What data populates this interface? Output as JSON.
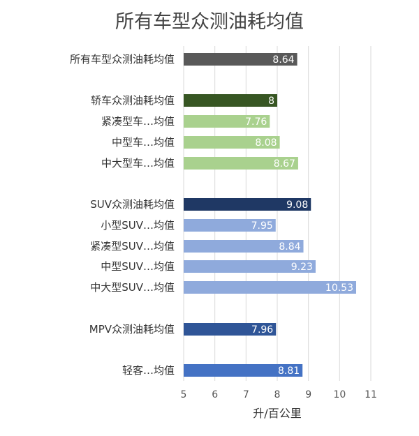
{
  "chart_data": {
    "type": "bar",
    "orientation": "horizontal",
    "title": "所有车型众测油耗均值",
    "xlabel": "升/百公里",
    "xlim": [
      5,
      11
    ],
    "xticks": [
      5,
      6,
      7,
      8,
      9,
      10,
      11
    ],
    "grid": true,
    "legend": "none",
    "bars": [
      {
        "label": "所有车型众测油耗均值",
        "value": 8.64,
        "value_label": "8.64",
        "color": "#595959"
      },
      {
        "label": "轿车众测油耗均值",
        "value": 8,
        "value_label": "8",
        "color": "#375623"
      },
      {
        "label": "紧凑型车…均值",
        "value": 7.76,
        "value_label": "7.76",
        "color": "#a9d18e"
      },
      {
        "label": "中型车…均值",
        "value": 8.08,
        "value_label": "8.08",
        "color": "#a9d18e"
      },
      {
        "label": "中大型车…均值",
        "value": 8.67,
        "value_label": "8.67",
        "color": "#a9d18e"
      },
      {
        "label": "SUV众测油耗均值",
        "value": 9.08,
        "value_label": "9.08",
        "color": "#1f3864"
      },
      {
        "label": "小型SUV…均值",
        "value": 7.95,
        "value_label": "7.95",
        "color": "#8faadc"
      },
      {
        "label": "紧凑型SUV…均值",
        "value": 8.84,
        "value_label": "8.84",
        "color": "#8faadc"
      },
      {
        "label": "中型SUV…均值",
        "value": 9.23,
        "value_label": "9.23",
        "color": "#8faadc"
      },
      {
        "label": "中大型SUV…均值",
        "value": 10.53,
        "value_label": "10.53",
        "color": "#8faadc"
      },
      {
        "label": "MPV众测油耗均值",
        "value": 7.96,
        "value_label": "7.96",
        "color": "#2f5597"
      },
      {
        "label": "轻客…均值",
        "value": 8.81,
        "value_label": "8.81",
        "color": "#4472c4"
      }
    ]
  }
}
